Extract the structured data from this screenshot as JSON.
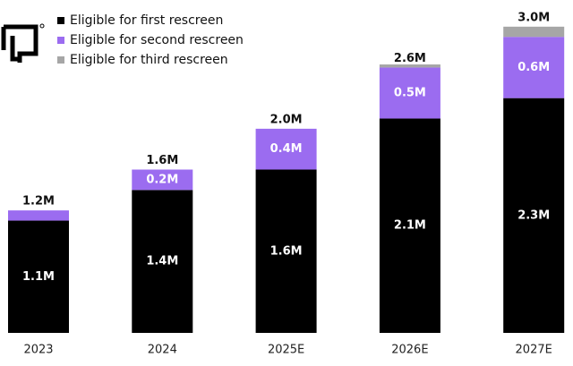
{
  "chart_data": {
    "type": "stacked_bar",
    "categories": [
      "2023",
      "2024",
      "2025E",
      "2026E",
      "2027E"
    ],
    "series": [
      {
        "name": "Eligible for first rescreen",
        "color": "#000000",
        "values": [
          1.1,
          1.4,
          1.6,
          2.1,
          2.3
        ],
        "value_labels": [
          "1.1M",
          "1.4M",
          "1.6M",
          "2.1M",
          "2.3M"
        ]
      },
      {
        "name": "Eligible for second rescreen",
        "color": "#9b6cf0",
        "values": [
          0.1,
          0.2,
          0.4,
          0.5,
          0.6
        ],
        "value_labels": [
          null,
          "0.2M",
          "0.4M",
          "0.5M",
          "0.6M"
        ]
      },
      {
        "name": "Eligible for third rescreen",
        "color": "#a6a6a6",
        "values": [
          0,
          0,
          0,
          0.03,
          0.1
        ]
      }
    ],
    "totals": {
      "values": [
        1.2,
        1.6,
        2.0,
        2.6,
        3.0
      ],
      "value_labels": [
        "1.2M",
        "1.6M",
        "2.0M",
        "2.6M",
        "3.0M"
      ]
    },
    "ylim": [
      0,
      3.2
    ]
  }
}
